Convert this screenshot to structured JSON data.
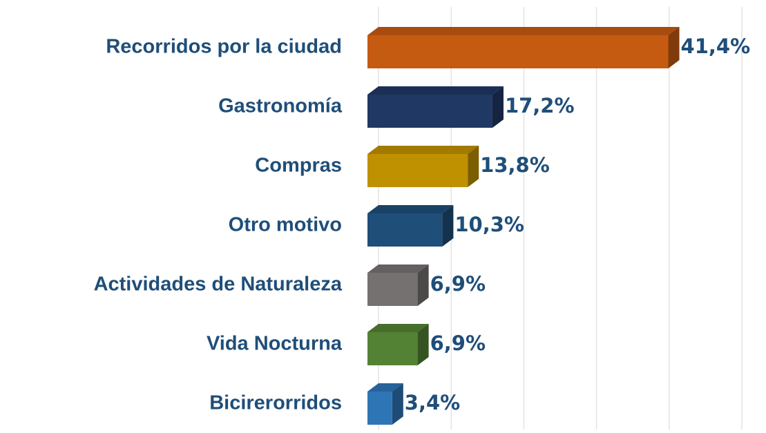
{
  "chart_data": {
    "type": "bar",
    "orientation": "horizontal",
    "categories": [
      "Recorridos por la ciudad",
      "Gastronomía",
      "Compras",
      "Otro motivo",
      "Actividades de Naturaleza",
      "Vida Nocturna",
      "Bicirerorridos"
    ],
    "values": [
      41.4,
      17.2,
      13.8,
      10.3,
      6.9,
      6.9,
      3.4
    ],
    "value_labels": [
      "41,4%",
      "17,2%",
      "13,8%",
      "10,3%",
      "6,9%",
      "6,9%",
      "3,4%"
    ],
    "colors": [
      "#c55a11",
      "#203864",
      "#bf9000",
      "#1f4e79",
      "#767171",
      "#548235",
      "#2e75b6"
    ],
    "xlim": [
      0,
      50
    ],
    "xticks": [
      0,
      10,
      20,
      30,
      40,
      50
    ],
    "grid": true
  }
}
